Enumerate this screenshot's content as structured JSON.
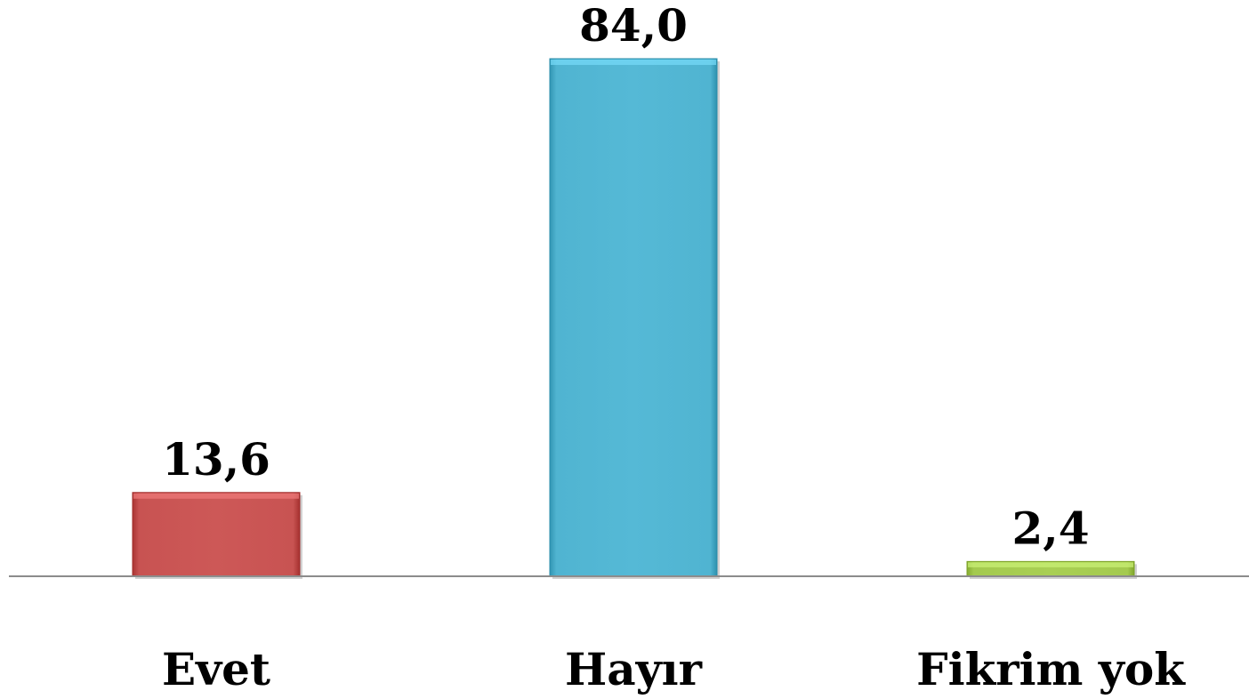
{
  "chart_data": {
    "type": "bar",
    "categories": [
      "Evet",
      "Hayır",
      "Fikrim yok"
    ],
    "values": [
      13.6,
      84.0,
      2.4
    ],
    "value_labels": [
      "13,6",
      "84,0",
      "2,4"
    ],
    "colors": [
      "#CD5857",
      "#55B9D6",
      "#A9CF54"
    ],
    "title": "",
    "xlabel": "",
    "ylabel": "",
    "ylim": [
      0,
      84
    ],
    "grid": false,
    "legend": "none"
  }
}
